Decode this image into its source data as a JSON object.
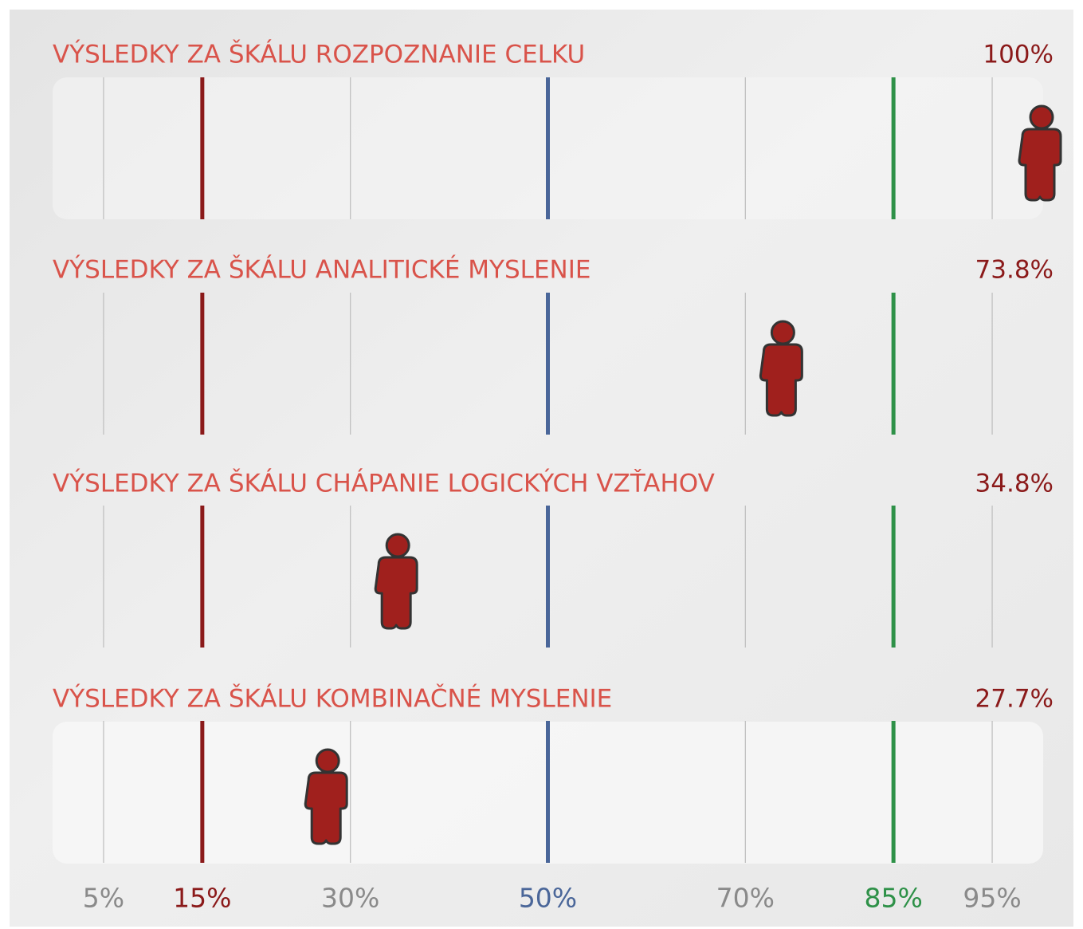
{
  "chart_data": {
    "type": "percentile",
    "categories": [
      "VÝSLEDKY ZA ŠKÁLU ROZPOZNANIE CELKU",
      "VÝSLEDKY ZA ŠKÁLU ANALITICKÉ MYSLENIE",
      "VÝSLEDKY ZA ŠKÁLU CHÁPANIE LOGICKÝCH VZŤAHOV",
      "VÝSLEDKY ZA ŠKÁLU KOMBINAČNÉ MYSLENIE"
    ],
    "values": [
      100,
      73.8,
      34.8,
      27.7
    ],
    "value_labels": [
      "100%",
      "73.8%",
      "34.8%",
      "27.7%"
    ],
    "color": "#a0201d",
    "xlim": [
      0,
      100
    ],
    "xticks": [
      {
        "value": 5,
        "label": "5%",
        "color": "#bdbdbd"
      },
      {
        "value": 15,
        "label": "15%",
        "color": "#8b1a1a"
      },
      {
        "value": 30,
        "label": "30%",
        "color": "#bdbdbd"
      },
      {
        "value": 50,
        "label": "50%",
        "color": "#4a6699"
      },
      {
        "value": 70,
        "label": "70%",
        "color": "#bdbdbd"
      },
      {
        "value": 85,
        "label": "85%",
        "color": "#2e9148"
      },
      {
        "value": 95,
        "label": "95%",
        "color": "#bdbdbd"
      }
    ]
  }
}
